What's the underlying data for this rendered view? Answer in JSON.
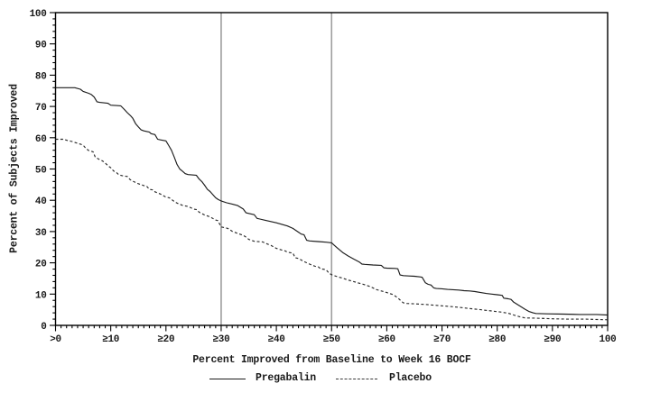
{
  "chart_data": {
    "type": "line",
    "title": "",
    "xlabel": "Percent Improved from Baseline to Week 16 BOCF",
    "ylabel": "Percent of Subjects Improved",
    "xlim": [
      0,
      100
    ],
    "ylim": [
      0,
      100
    ],
    "grid": false,
    "legend_position": "bottom",
    "x_ticks": [
      {
        "value": 0,
        "label": ">0"
      },
      {
        "value": 10,
        "label": "≥10"
      },
      {
        "value": 20,
        "label": "≥20"
      },
      {
        "value": 30,
        "label": "≥30"
      },
      {
        "value": 40,
        "label": "≥40"
      },
      {
        "value": 50,
        "label": "≥50"
      },
      {
        "value": 60,
        "label": "≥60"
      },
      {
        "value": 70,
        "label": "≥70"
      },
      {
        "value": 80,
        "label": "≥80"
      },
      {
        "value": 90,
        "label": "≥90"
      },
      {
        "value": 100,
        "label": "100"
      }
    ],
    "y_ticks": [
      {
        "value": 0,
        "label": "0"
      },
      {
        "value": 10,
        "label": "10"
      },
      {
        "value": 20,
        "label": "20"
      },
      {
        "value": 30,
        "label": "30"
      },
      {
        "value": 40,
        "label": "40"
      },
      {
        "value": 50,
        "label": "50"
      },
      {
        "value": 60,
        "label": "60"
      },
      {
        "value": 70,
        "label": "70"
      },
      {
        "value": 80,
        "label": "80"
      },
      {
        "value": 90,
        "label": "90"
      },
      {
        "value": 100,
        "label": "100"
      }
    ],
    "x_minor_tick_step": 1,
    "y_minor_tick_step": 2,
    "reference_lines_x": [
      30,
      50
    ],
    "series": [
      {
        "name": "Pregabalin",
        "style": "solid",
        "color": "#1c1c1c",
        "points": [
          [
            0,
            76
          ],
          [
            3.5,
            76
          ],
          [
            4.5,
            75.5
          ],
          [
            5,
            74.8
          ],
          [
            6,
            74.2
          ],
          [
            6.5,
            73.8
          ],
          [
            7,
            73
          ],
          [
            7.5,
            71.5
          ],
          [
            8,
            71.3
          ],
          [
            9.5,
            71
          ],
          [
            10,
            70.4
          ],
          [
            11.8,
            70.2
          ],
          [
            12.5,
            69
          ],
          [
            13,
            68
          ],
          [
            13.6,
            67
          ],
          [
            14,
            66.2
          ],
          [
            14.5,
            64.5
          ],
          [
            15,
            63.5
          ],
          [
            15.5,
            62.5
          ],
          [
            16,
            62.2
          ],
          [
            17,
            61.8
          ],
          [
            17.3,
            61.3
          ],
          [
            18,
            61
          ],
          [
            18.5,
            59.5
          ],
          [
            19,
            59.3
          ],
          [
            20,
            59
          ],
          [
            20.5,
            57.5
          ],
          [
            21,
            56
          ],
          [
            21.5,
            53.8
          ],
          [
            22,
            51.5
          ],
          [
            22.5,
            50
          ],
          [
            23,
            49.3
          ],
          [
            23.5,
            48.5
          ],
          [
            24,
            48.2
          ],
          [
            25.5,
            48
          ],
          [
            26,
            46.8
          ],
          [
            26.5,
            46
          ],
          [
            27,
            44.8
          ],
          [
            27.5,
            43.5
          ],
          [
            28,
            42.8
          ],
          [
            28.5,
            41.8
          ],
          [
            29,
            40.8
          ],
          [
            29.5,
            40.2
          ],
          [
            30,
            39.8
          ],
          [
            31,
            39.2
          ],
          [
            32,
            38.8
          ],
          [
            33,
            38.3
          ],
          [
            34,
            37.2
          ],
          [
            34.5,
            36
          ],
          [
            35,
            35.8
          ],
          [
            36,
            35.4
          ],
          [
            36.5,
            34.2
          ],
          [
            37,
            34
          ],
          [
            38,
            33.6
          ],
          [
            39,
            33.2
          ],
          [
            40,
            32.8
          ],
          [
            41,
            32.3
          ],
          [
            42,
            31.8
          ],
          [
            43,
            31
          ],
          [
            44,
            29.8
          ],
          [
            44.5,
            29.2
          ],
          [
            45,
            29
          ],
          [
            45.5,
            27.2
          ],
          [
            46,
            27
          ],
          [
            47.5,
            26.8
          ],
          [
            49,
            26.6
          ],
          [
            50,
            26.4
          ],
          [
            50.5,
            25.6
          ],
          [
            51,
            24.8
          ],
          [
            52,
            23.3
          ],
          [
            53,
            22.2
          ],
          [
            54,
            21.2
          ],
          [
            55,
            20.3
          ],
          [
            55.5,
            19.6
          ],
          [
            56,
            19.5
          ],
          [
            57.5,
            19.3
          ],
          [
            59,
            19.2
          ],
          [
            59.5,
            18.4
          ],
          [
            60,
            18.3
          ],
          [
            61.5,
            18.2
          ],
          [
            62,
            18.1
          ],
          [
            62.4,
            16.1
          ],
          [
            63,
            15.9
          ],
          [
            64,
            15.8
          ],
          [
            65,
            15.7
          ],
          [
            66,
            15.5
          ],
          [
            66.4,
            15.4
          ],
          [
            67,
            13.6
          ],
          [
            67.5,
            13.1
          ],
          [
            68,
            12.9
          ],
          [
            68.5,
            12
          ],
          [
            69,
            11.8
          ],
          [
            70,
            11.7
          ],
          [
            71,
            11.5
          ],
          [
            72,
            11.4
          ],
          [
            73,
            11.3
          ],
          [
            74,
            11.1
          ],
          [
            75,
            11
          ],
          [
            76,
            10.8
          ],
          [
            77,
            10.5
          ],
          [
            78,
            10.2
          ],
          [
            79,
            10
          ],
          [
            80,
            9.8
          ],
          [
            80.9,
            9.6
          ],
          [
            81.2,
            8.7
          ],
          [
            82,
            8.5
          ],
          [
            82.5,
            8.3
          ],
          [
            83,
            7.4
          ],
          [
            84,
            6.3
          ],
          [
            85,
            5.2
          ],
          [
            85.8,
            4.4
          ],
          [
            86.5,
            4
          ],
          [
            87,
            3.8
          ],
          [
            89,
            3.7
          ],
          [
            92,
            3.6
          ],
          [
            95,
            3.5
          ],
          [
            98,
            3.5
          ],
          [
            100,
            3.3
          ]
        ]
      },
      {
        "name": "Placebo",
        "style": "dashed",
        "color": "#2a2a2a",
        "points": [
          [
            0,
            59.5
          ],
          [
            1.5,
            59.5
          ],
          [
            2,
            59.2
          ],
          [
            3,
            58.8
          ],
          [
            4,
            58.2
          ],
          [
            4.6,
            57.9
          ],
          [
            5,
            57.6
          ],
          [
            5.5,
            56.6
          ],
          [
            6,
            55.9
          ],
          [
            6.8,
            55.5
          ],
          [
            7.2,
            53.8
          ],
          [
            8,
            53
          ],
          [
            8.5,
            52.6
          ],
          [
            9,
            51.9
          ],
          [
            9.6,
            50.9
          ],
          [
            10,
            50.4
          ],
          [
            10.5,
            49.4
          ],
          [
            11,
            48.9
          ],
          [
            11.5,
            48.1
          ],
          [
            12,
            47.9
          ],
          [
            13,
            47.6
          ],
          [
            13.5,
            46.6
          ],
          [
            14,
            46.1
          ],
          [
            15,
            45.3
          ],
          [
            16,
            44.7
          ],
          [
            16.5,
            44.5
          ],
          [
            17,
            43.5
          ],
          [
            17.6,
            43.3
          ],
          [
            18,
            42.7
          ],
          [
            19,
            42
          ],
          [
            20,
            41
          ],
          [
            20.6,
            40.8
          ],
          [
            21,
            40.3
          ],
          [
            21.5,
            39.6
          ],
          [
            22,
            39.1
          ],
          [
            23,
            38.4
          ],
          [
            24,
            38
          ],
          [
            25,
            37.2
          ],
          [
            25.6,
            37
          ],
          [
            26,
            36.2
          ],
          [
            27,
            35.3
          ],
          [
            28,
            34.7
          ],
          [
            29,
            33.7
          ],
          [
            29.4,
            33.5
          ],
          [
            30,
            31.5
          ],
          [
            31.2,
            31
          ],
          [
            32,
            30.1
          ],
          [
            33,
            29.4
          ],
          [
            34,
            28.8
          ],
          [
            34.6,
            28.1
          ],
          [
            35,
            27.5
          ],
          [
            36,
            26.9
          ],
          [
            37.5,
            26.7
          ],
          [
            38.4,
            26
          ],
          [
            39,
            25.6
          ],
          [
            40,
            24.6
          ],
          [
            41,
            24.1
          ],
          [
            41.6,
            23.8
          ],
          [
            42,
            23.4
          ],
          [
            43,
            23.1
          ],
          [
            43.4,
            21.6
          ],
          [
            44,
            21.4
          ],
          [
            45,
            20.4
          ],
          [
            46,
            19.6
          ],
          [
            47,
            18.9
          ],
          [
            47.6,
            18.7
          ],
          [
            48,
            18.1
          ],
          [
            49,
            17.8
          ],
          [
            49.6,
            16.6
          ],
          [
            50,
            16.2
          ],
          [
            51,
            15.6
          ],
          [
            52,
            15.1
          ],
          [
            53,
            14.5
          ],
          [
            54,
            14
          ],
          [
            55,
            13.5
          ],
          [
            56,
            13
          ],
          [
            57,
            12.4
          ],
          [
            57.6,
            11.9
          ],
          [
            58,
            11.5
          ],
          [
            59,
            11
          ],
          [
            60,
            10.5
          ],
          [
            61,
            9.9
          ],
          [
            61.5,
            9.4
          ],
          [
            62,
            8.8
          ],
          [
            62.6,
            7.8
          ],
          [
            63,
            7.2
          ],
          [
            63.6,
            7
          ],
          [
            65,
            6.9
          ],
          [
            67,
            6.7
          ],
          [
            69,
            6.4
          ],
          [
            71,
            6.1
          ],
          [
            73,
            5.8
          ],
          [
            75,
            5.4
          ],
          [
            77,
            5
          ],
          [
            79,
            4.6
          ],
          [
            80.5,
            4.3
          ],
          [
            82,
            3.9
          ],
          [
            83,
            3.3
          ],
          [
            84,
            2.8
          ],
          [
            85,
            2.4
          ],
          [
            87,
            2.3
          ],
          [
            90,
            2.1
          ],
          [
            93,
            2
          ],
          [
            96,
            2
          ],
          [
            100,
            1.8
          ]
        ]
      }
    ],
    "colors": {
      "axis": "#000000",
      "reference_line": "#9e9e9e",
      "text": "#1a1a1a"
    }
  }
}
